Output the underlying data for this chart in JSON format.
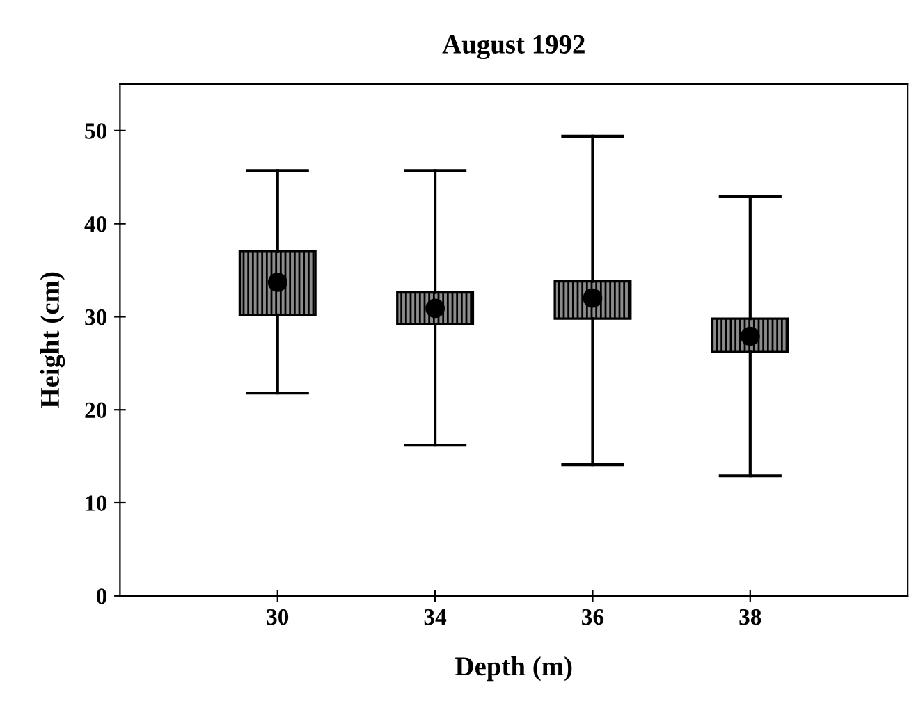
{
  "chart_data": {
    "type": "box",
    "title": "August 1992",
    "xlabel": "Depth (m)",
    "ylabel": "Height (cm)",
    "categories": [
      "30",
      "34",
      "36",
      "38"
    ],
    "boxes": [
      {
        "low": 21.8,
        "q1": 30.2,
        "median": 33.7,
        "q3": 37.0,
        "high": 45.7
      },
      {
        "low": 16.2,
        "q1": 29.2,
        "median": 30.9,
        "q3": 32.6,
        "high": 45.7
      },
      {
        "low": 14.1,
        "q1": 29.8,
        "median": 32.0,
        "q3": 33.8,
        "high": 49.4
      },
      {
        "low": 12.9,
        "q1": 26.2,
        "median": 27.9,
        "q3": 29.8,
        "high": 42.9
      }
    ],
    "color": "#000000",
    "marker": "circle",
    "ylim": [
      0,
      55
    ],
    "yticks": [
      0,
      10,
      20,
      30,
      40,
      50
    ],
    "grid": false,
    "legend": false
  }
}
